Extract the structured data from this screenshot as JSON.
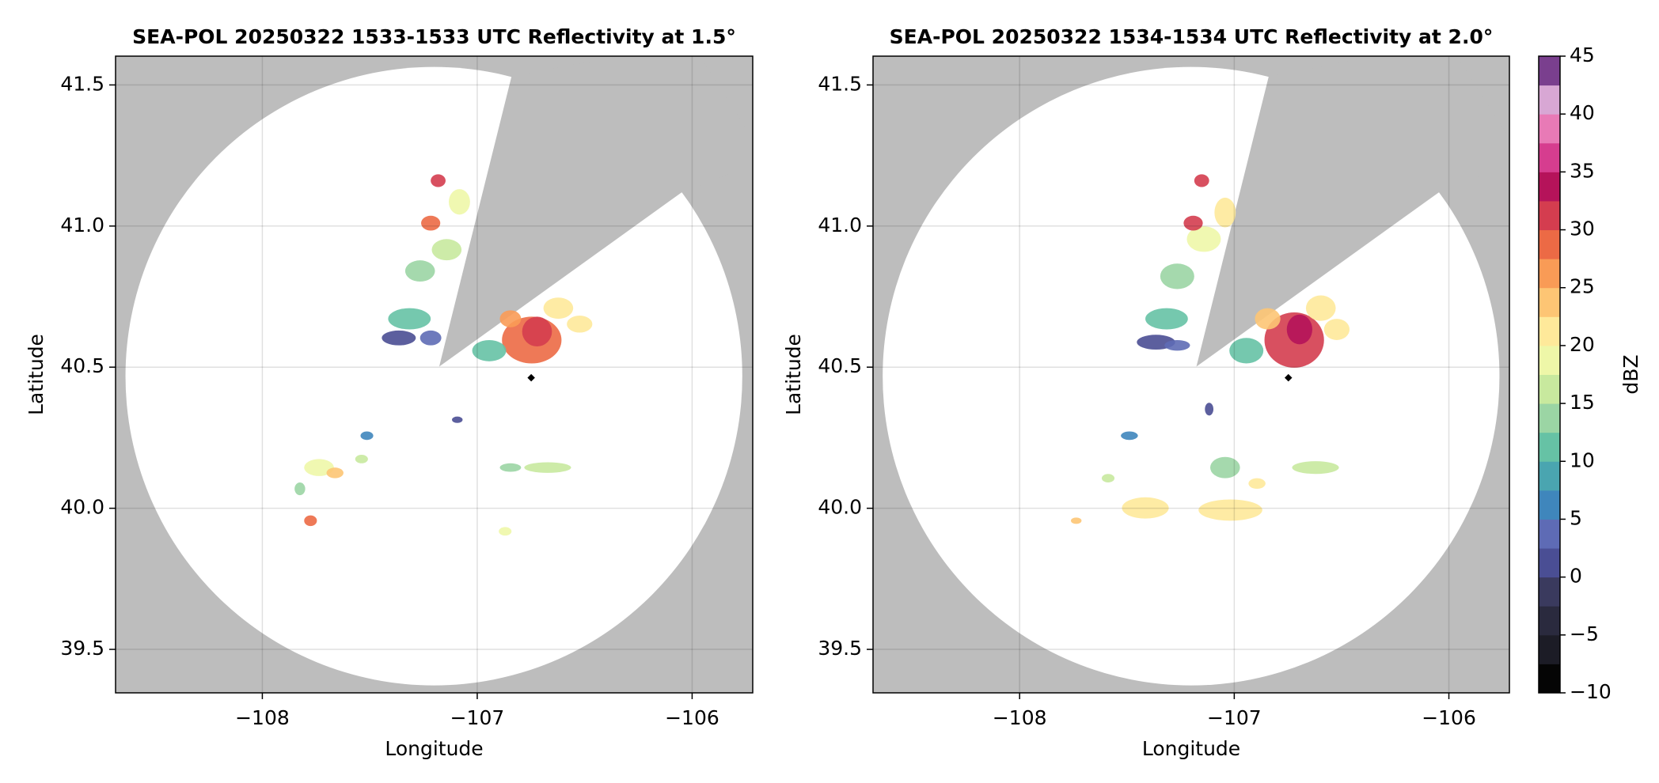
{
  "chart_data": [
    {
      "type": "radar-ppi",
      "title": "SEA-POL 20250322 1533-1533 UTC Reflectivity at 1.5°",
      "xlabel": "Longitude",
      "ylabel": "Latitude",
      "xlim": [
        -108.683,
        -105.718
      ],
      "ylim": [
        39.346,
        41.602
      ],
      "xticks": [
        {
          "value": -108,
          "label": "−108"
        },
        {
          "value": -107,
          "label": "−107"
        },
        {
          "value": -106,
          "label": "−106"
        }
      ],
      "yticks": [
        {
          "value": 39.5,
          "label": "39.5"
        },
        {
          "value": 40.0,
          "label": "40.0"
        },
        40.5,
        {
          "value": 41.0,
          "label": "41.0"
        },
        41.5
      ],
      "grid": true
    },
    {
      "type": "radar-ppi",
      "title": "SEA-POL 20250322 1534-1534 UTC Reflectivity at 2.0°",
      "xlabel": "Longitude",
      "ylabel": "Latitude",
      "xlim": [
        -108.683,
        -105.718
      ],
      "ylim": [
        39.346,
        41.602
      ],
      "xticks": [
        {
          "value": -108,
          "label": "−108"
        },
        {
          "value": -107,
          "label": "−107"
        },
        {
          "value": -106,
          "label": "−106"
        }
      ],
      "yticks": [
        {
          "value": 39.5,
          "label": "39.5"
        },
        {
          "value": 40.0,
          "label": "40.0"
        },
        40.5,
        {
          "value": 41.0,
          "label": "41.0"
        },
        41.5
      ],
      "grid": true,
      "colorbar": {
        "label": "dBZ",
        "lim": [
          -10,
          45
        ],
        "ticks": [
          {
            "value": -10,
            "label": "−10"
          },
          {
            "value": -5,
            "label": "−5"
          },
          0,
          5,
          10,
          15,
          20,
          25,
          30,
          35,
          40,
          45
        ],
        "colors": [
          "#050505",
          "#1c1c26",
          "#2a2a3e",
          "#3a3a5e",
          "#4a4e94",
          "#5e6bb5",
          "#3f86bc",
          "#4aa5b0",
          "#66c2a5",
          "#9bd5a4",
          "#c8e99e",
          "#eef7a8",
          "#fee99a",
          "#fdc574",
          "#f99b56",
          "#ec6a45",
          "#d43d4f",
          "#b5135a",
          "#d63d8f",
          "#e87ab6",
          "#d8a7d4",
          "#7a3f8e"
        ]
      }
    }
  ]
}
